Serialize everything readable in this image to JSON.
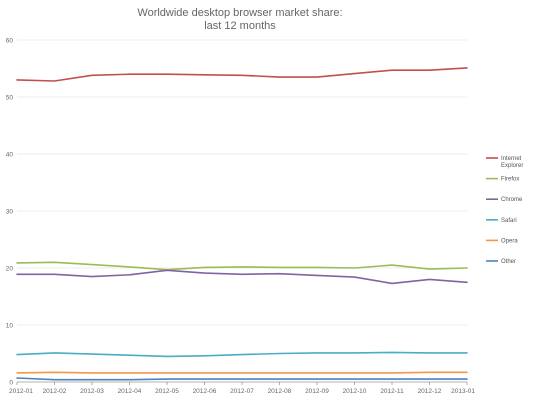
{
  "chart_data": {
    "type": "line",
    "title": [
      "Worldwide desktop browser market share:",
      "last 12 months"
    ],
    "xlabel": "",
    "ylabel": "",
    "ylim": [
      0,
      60
    ],
    "yticks": [
      "0",
      "10",
      "20",
      "30",
      "40",
      "50",
      "60"
    ],
    "grid": true,
    "legend_position": "right",
    "x": [
      "2012-01",
      "2012-02",
      "2012-03",
      "2012-04",
      "2012-05",
      "2012-06",
      "2012-07",
      "2012-08",
      "2012-09",
      "2012-10",
      "2012-11",
      "2012-12",
      "2013-01"
    ],
    "series": [
      {
        "name": "Internet Explorer",
        "legend_lines": [
          "Internet",
          "Explorer"
        ],
        "color": "#c0504d",
        "values": [
          53.0,
          52.8,
          53.8,
          54.0,
          54.0,
          53.9,
          53.8,
          53.5,
          53.5,
          54.1,
          54.7,
          54.7,
          55.1
        ]
      },
      {
        "name": "Firefox",
        "legend_lines": [
          "Firefox"
        ],
        "color": "#9bbb59",
        "values": [
          20.9,
          21.0,
          20.6,
          20.2,
          19.7,
          20.1,
          20.2,
          20.1,
          20.1,
          20.0,
          20.5,
          19.8,
          20.0
        ]
      },
      {
        "name": "Chrome",
        "legend_lines": [
          "Chrome"
        ],
        "color": "#8064a2",
        "values": [
          18.9,
          18.9,
          18.5,
          18.8,
          19.6,
          19.1,
          18.9,
          19.0,
          18.7,
          18.4,
          17.3,
          18.0,
          17.5
        ]
      },
      {
        "name": "Safari",
        "legend_lines": [
          "Safari"
        ],
        "color": "#4bacc6",
        "values": [
          4.8,
          5.1,
          4.9,
          4.7,
          4.5,
          4.6,
          4.8,
          5.0,
          5.1,
          5.1,
          5.2,
          5.1,
          5.1
        ]
      },
      {
        "name": "Opera",
        "legend_lines": [
          "Opera"
        ],
        "color": "#f79646",
        "values": [
          1.6,
          1.7,
          1.6,
          1.6,
          1.6,
          1.6,
          1.6,
          1.6,
          1.6,
          1.6,
          1.6,
          1.7,
          1.7
        ]
      },
      {
        "name": "Other",
        "legend_lines": [
          "Other"
        ],
        "color": "#4f81bd",
        "values": [
          0.7,
          0.4,
          0.4,
          0.4,
          0.5,
          0.5,
          0.5,
          0.5,
          0.5,
          0.5,
          0.5,
          0.5,
          0.5
        ]
      }
    ]
  }
}
